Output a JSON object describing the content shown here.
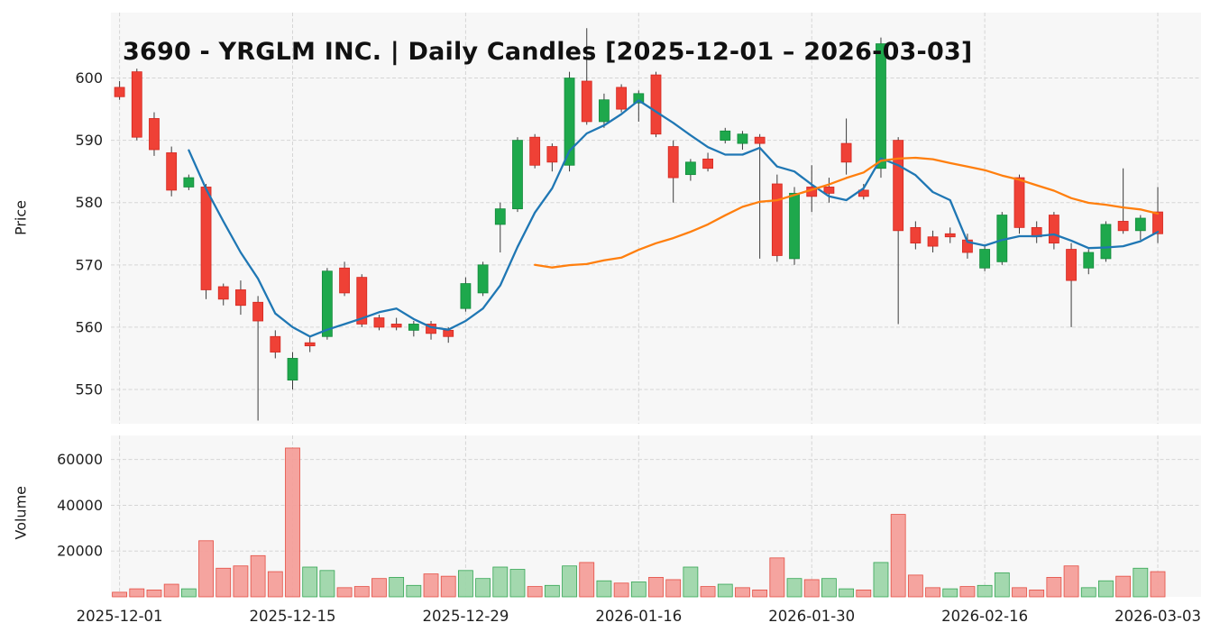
{
  "chart_data": {
    "type": "candlestick-with-volume",
    "title": "3690 - YRGLM INC. | Daily Candles [2025-12-01 – 2026-03-03]",
    "price_axis": {
      "label": "Price",
      "ticks": [
        550,
        560,
        570,
        580,
        590,
        600
      ],
      "ylim": [
        544.5,
        610.5
      ]
    },
    "volume_axis": {
      "label": "Volume",
      "ticks": [
        20000,
        40000,
        60000
      ],
      "ylim": [
        0,
        70500
      ]
    },
    "x_ticks": [
      {
        "index": 0,
        "label": "2025-12-01"
      },
      {
        "index": 10,
        "label": "2025-12-15"
      },
      {
        "index": 20,
        "label": "2025-12-29"
      },
      {
        "index": 30,
        "label": "2026-01-16"
      },
      {
        "index": 40,
        "label": "2026-01-30"
      },
      {
        "index": 50,
        "label": "2026-02-16"
      },
      {
        "index": 60,
        "label": "2026-03-03"
      }
    ],
    "columns": [
      "date",
      "open",
      "high",
      "low",
      "close",
      "volume"
    ],
    "candles": [
      [
        "2025-12-01",
        598.5,
        599.5,
        596.5,
        597.0,
        2000
      ],
      [
        "2025-12-02",
        601.0,
        601.5,
        590.0,
        590.5,
        3500
      ],
      [
        "2025-12-03",
        593.5,
        594.5,
        587.5,
        588.5,
        3000
      ],
      [
        "2025-12-04",
        588.0,
        589.0,
        581.0,
        582.0,
        5500
      ],
      [
        "2025-12-05",
        582.5,
        584.5,
        582.0,
        584.0,
        3500
      ],
      [
        "2025-12-08",
        582.5,
        583.0,
        564.5,
        566.0,
        24500
      ],
      [
        "2025-12-09",
        566.5,
        567.0,
        563.5,
        564.5,
        12500
      ],
      [
        "2025-12-10",
        566.0,
        567.5,
        562.0,
        563.5,
        13500
      ],
      [
        "2025-12-11",
        564.0,
        565.0,
        545.0,
        561.0,
        18000
      ],
      [
        "2025-12-12",
        558.5,
        559.5,
        555.0,
        556.0,
        11000
      ],
      [
        "2025-12-15",
        551.5,
        556.0,
        550.0,
        555.0,
        65000
      ],
      [
        "2025-12-16",
        557.5,
        558.5,
        556.0,
        557.0,
        13000
      ],
      [
        "2025-12-17",
        558.5,
        569.5,
        558.0,
        569.0,
        11500
      ],
      [
        "2025-12-18",
        569.5,
        570.5,
        565.0,
        565.5,
        4000
      ],
      [
        "2025-12-19",
        568.0,
        568.5,
        560.0,
        560.5,
        4500
      ],
      [
        "2025-12-22",
        561.5,
        562.0,
        559.5,
        560.0,
        8000
      ],
      [
        "2025-12-23",
        560.5,
        561.5,
        559.5,
        560.0,
        8500
      ],
      [
        "2025-12-24",
        559.5,
        561.0,
        558.5,
        560.5,
        5000
      ],
      [
        "2025-12-25",
        560.5,
        561.0,
        558.0,
        559.0,
        10000
      ],
      [
        "2025-12-26",
        559.5,
        560.0,
        557.5,
        558.5,
        9000
      ],
      [
        "2025-12-29",
        563.0,
        568.0,
        562.5,
        567.0,
        11500
      ],
      [
        "2025-12-30",
        565.5,
        570.5,
        565.0,
        570.0,
        8000
      ],
      [
        "2026-01-05",
        576.5,
        580.0,
        572.0,
        579.0,
        13000
      ],
      [
        "2026-01-06",
        579.0,
        590.5,
        578.5,
        590.0,
        12000
      ],
      [
        "2026-01-07",
        590.5,
        591.0,
        585.5,
        586.0,
        4500
      ],
      [
        "2026-01-08",
        589.0,
        589.5,
        585.0,
        586.5,
        5000
      ],
      [
        "2026-01-09",
        586.0,
        601.0,
        585.0,
        600.0,
        13500
      ],
      [
        "2026-01-13",
        599.5,
        608.0,
        592.5,
        593.0,
        15000
      ],
      [
        "2026-01-14",
        593.0,
        597.5,
        592.0,
        596.5,
        7000
      ],
      [
        "2026-01-15",
        598.5,
        599.0,
        594.5,
        595.0,
        6000
      ],
      [
        "2026-01-16",
        596.0,
        598.0,
        593.0,
        597.5,
        6500
      ],
      [
        "2026-01-19",
        600.5,
        601.0,
        590.5,
        591.0,
        8500
      ],
      [
        "2026-01-20",
        589.0,
        590.0,
        580.0,
        584.0,
        7500
      ],
      [
        "2026-01-21",
        584.5,
        587.0,
        583.5,
        586.5,
        13000
      ],
      [
        "2026-01-22",
        587.0,
        588.0,
        585.0,
        585.5,
        4500
      ],
      [
        "2026-01-23",
        590.0,
        592.0,
        589.5,
        591.5,
        5500
      ],
      [
        "2026-01-26",
        589.5,
        591.5,
        588.5,
        591.0,
        4000
      ],
      [
        "2026-01-27",
        590.5,
        591.0,
        571.0,
        589.5,
        3000
      ],
      [
        "2026-01-28",
        583.0,
        584.5,
        570.5,
        571.5,
        17000
      ],
      [
        "2026-01-29",
        571.0,
        582.5,
        570.0,
        581.5,
        8000
      ],
      [
        "2026-01-30",
        582.5,
        586.0,
        578.5,
        581.0,
        7500
      ],
      [
        "2026-02-02",
        582.5,
        584.0,
        580.0,
        581.5,
        8000
      ],
      [
        "2026-02-03",
        589.5,
        593.5,
        584.5,
        586.5,
        3500
      ],
      [
        "2026-02-04",
        582.0,
        583.0,
        580.5,
        581.0,
        3000
      ],
      [
        "2026-02-05",
        585.5,
        606.5,
        584.0,
        605.5,
        15000
      ],
      [
        "2026-02-06",
        590.0,
        590.5,
        560.5,
        575.5,
        36000
      ],
      [
        "2026-02-09",
        576.0,
        577.0,
        572.5,
        573.5,
        9500
      ],
      [
        "2026-02-10",
        574.5,
        575.5,
        572.0,
        573.0,
        4000
      ],
      [
        "2026-02-12",
        575.0,
        576.0,
        573.5,
        574.5,
        3500
      ],
      [
        "2026-02-13",
        574.0,
        575.0,
        571.0,
        572.0,
        4500
      ],
      [
        "2026-02-16",
        569.5,
        573.0,
        569.0,
        572.5,
        5000
      ],
      [
        "2026-02-17",
        570.5,
        578.5,
        570.0,
        578.0,
        10500
      ],
      [
        "2026-02-18",
        584.0,
        584.5,
        575.0,
        576.0,
        4000
      ],
      [
        "2026-02-19",
        576.0,
        577.0,
        573.5,
        574.5,
        3000
      ],
      [
        "2026-02-20",
        578.0,
        578.5,
        572.5,
        573.5,
        8500
      ],
      [
        "2026-02-24",
        572.5,
        573.5,
        560.0,
        567.5,
        13500
      ],
      [
        "2026-02-25",
        569.5,
        572.5,
        568.5,
        572.0,
        4000
      ],
      [
        "2026-02-26",
        571.0,
        577.0,
        570.5,
        576.5,
        7000
      ],
      [
        "2026-02-27",
        577.0,
        585.5,
        575.0,
        575.5,
        9000
      ],
      [
        "2026-03-02",
        575.5,
        578.0,
        574.0,
        577.5,
        12500
      ],
      [
        "2026-03-03",
        578.5,
        582.5,
        573.5,
        575.0,
        11000
      ]
    ],
    "overlays": [
      {
        "name": "SMA5",
        "period": 5,
        "color": "#1f77b4"
      },
      {
        "name": "SMA25",
        "period": 25,
        "color": "#ff7f0e"
      }
    ],
    "colors": {
      "up": "#1ea84c",
      "up_edge": "#138a3b",
      "down": "#ef4136",
      "down_edge": "#d4271f",
      "wick": "#3b3b3b",
      "vol_up": "#9fd7ab",
      "vol_up_edge": "#2ba24c",
      "vol_down": "#f5a09b",
      "vol_down_edge": "#e4453a",
      "grid": "#d5d5d5",
      "panel_bg": "#f7f7f7",
      "tick_text": "#1f1f1f"
    }
  }
}
